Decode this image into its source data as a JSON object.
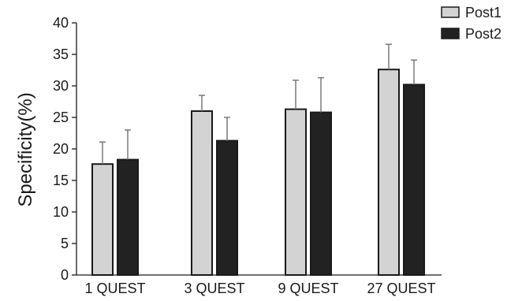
{
  "chart_data": {
    "type": "bar",
    "title": "",
    "xlabel": "",
    "ylabel": "Specificity(%)",
    "ylim": [
      0,
      40
    ],
    "yticks": [
      0,
      5,
      10,
      15,
      20,
      25,
      30,
      35,
      40
    ],
    "categories": [
      "1 QUEST",
      "3 QUEST",
      "9 QUEST",
      "27 QUEST"
    ],
    "series": [
      {
        "name": "Post1",
        "color": "#d3d3d3",
        "values": [
          17.6,
          26.0,
          26.3,
          32.6
        ],
        "error": [
          3.5,
          2.5,
          4.6,
          4.0
        ]
      },
      {
        "name": "Post2",
        "color": "#222222",
        "values": [
          18.3,
          21.3,
          25.8,
          30.2
        ],
        "error": [
          4.7,
          3.7,
          5.5,
          3.9
        ]
      }
    ],
    "legend_position": "top-right",
    "grid": false,
    "error_bars": "positive-only"
  }
}
